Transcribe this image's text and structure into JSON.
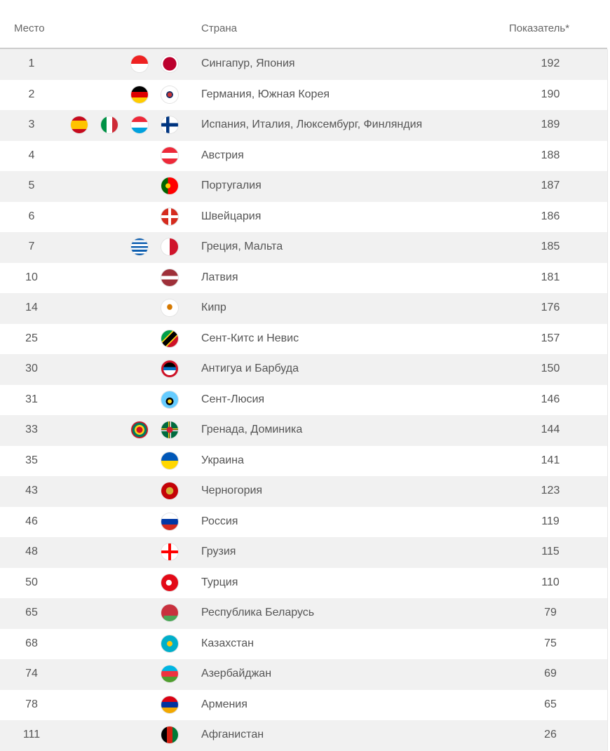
{
  "header": {
    "rank": "Место",
    "country": "Страна",
    "score": "Показатель*"
  },
  "rows": [
    {
      "rank": "1",
      "flags": [
        "sg",
        "jp"
      ],
      "country": "Сингапур, Япония",
      "score": "192"
    },
    {
      "rank": "2",
      "flags": [
        "de",
        "kr"
      ],
      "country": "Германия, Южная Корея",
      "score": "190"
    },
    {
      "rank": "3",
      "flags": [
        "es",
        "it",
        "lu",
        "fi"
      ],
      "country": "Испания, Италия, Люксембург, Финляндия",
      "score": "189"
    },
    {
      "rank": "4",
      "flags": [
        "at"
      ],
      "country": "Австрия",
      "score": "188"
    },
    {
      "rank": "5",
      "flags": [
        "pt"
      ],
      "country": "Португалия",
      "score": "187"
    },
    {
      "rank": "6",
      "flags": [
        "ch"
      ],
      "country": "Швейцария",
      "score": "186"
    },
    {
      "rank": "7",
      "flags": [
        "gr",
        "mt"
      ],
      "country": "Греция, Мальта",
      "score": "185"
    },
    {
      "rank": "10",
      "flags": [
        "lv"
      ],
      "country": "Латвия",
      "score": "181"
    },
    {
      "rank": "14",
      "flags": [
        "cy"
      ],
      "country": "Кипр",
      "score": "176"
    },
    {
      "rank": "25",
      "flags": [
        "kn"
      ],
      "country": "Сент-Китс и Невис",
      "score": "157"
    },
    {
      "rank": "30",
      "flags": [
        "ag"
      ],
      "country": "Антигуа и Барбуда",
      "score": "150"
    },
    {
      "rank": "31",
      "flags": [
        "lc"
      ],
      "country": "Сент-Люсия",
      "score": "146"
    },
    {
      "rank": "33",
      "flags": [
        "gd",
        "dm"
      ],
      "country": "Гренада, Доминика",
      "score": "144"
    },
    {
      "rank": "35",
      "flags": [
        "ua"
      ],
      "country": "Украина",
      "score": "141"
    },
    {
      "rank": "43",
      "flags": [
        "me"
      ],
      "country": "Черногория",
      "score": "123"
    },
    {
      "rank": "46",
      "flags": [
        "ru"
      ],
      "country": "Россия",
      "score": "119"
    },
    {
      "rank": "48",
      "flags": [
        "ge"
      ],
      "country": "Грузия",
      "score": "115"
    },
    {
      "rank": "50",
      "flags": [
        "tr"
      ],
      "country": "Турция",
      "score": "110"
    },
    {
      "rank": "65",
      "flags": [
        "by"
      ],
      "country": "Республика Беларусь",
      "score": "79"
    },
    {
      "rank": "68",
      "flags": [
        "kz"
      ],
      "country": "Казахстан",
      "score": "75"
    },
    {
      "rank": "74",
      "flags": [
        "az"
      ],
      "country": "Азербайджан",
      "score": "69"
    },
    {
      "rank": "78",
      "flags": [
        "am"
      ],
      "country": "Армения",
      "score": "65"
    },
    {
      "rank": "111",
      "flags": [
        "af"
      ],
      "country": "Афганистан",
      "score": "26"
    }
  ]
}
